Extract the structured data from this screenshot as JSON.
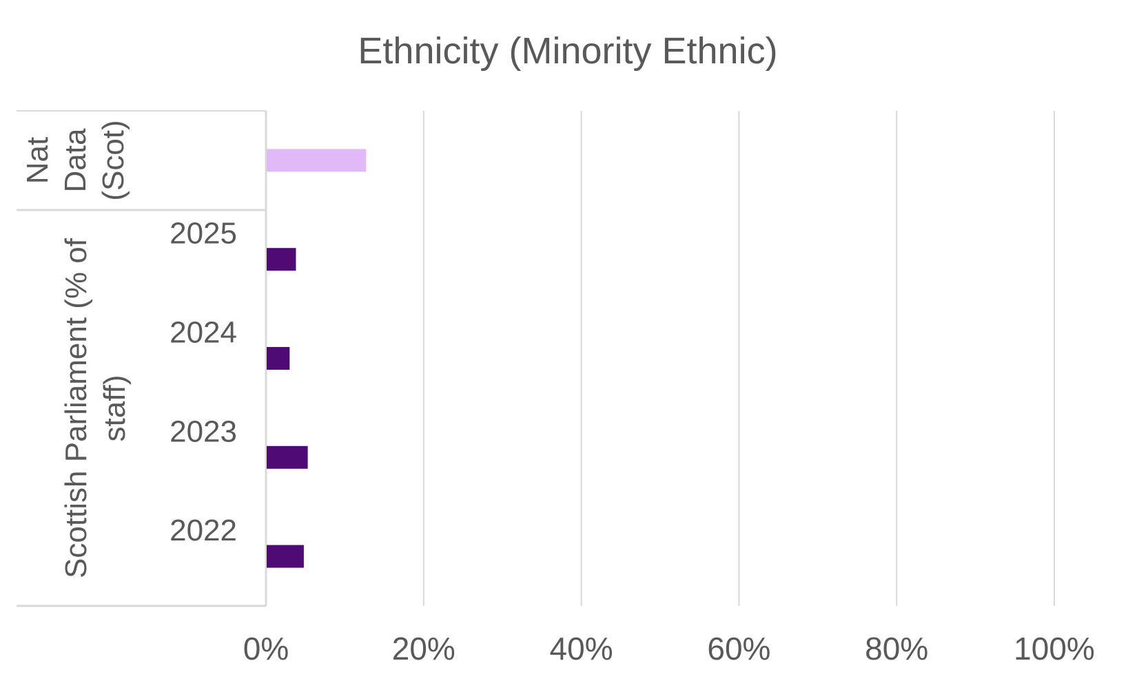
{
  "chart_data": {
    "type": "bar",
    "orientation": "horizontal",
    "title": "Ethnicity (Minority Ethnic)",
    "xlabel": "",
    "ylabel": "",
    "xlim": [
      0,
      100
    ],
    "x_ticks": [
      "0%",
      "20%",
      "40%",
      "60%",
      "80%",
      "100%"
    ],
    "grid": true,
    "legend": "none",
    "groups": [
      {
        "label_lines": [
          "Nat",
          "Data",
          "(Scot)"
        ],
        "categories": [
          ""
        ]
      },
      {
        "label_lines": [
          "Scottish Parliament (% of",
          "staff)"
        ],
        "categories": [
          "2025",
          "2024",
          "2023",
          "2022"
        ]
      }
    ],
    "categories": [
      "Nat Data (Scot)",
      "2025",
      "2024",
      "2023",
      "2022"
    ],
    "values": [
      12.7,
      3.8,
      3.0,
      5.3,
      4.8
    ],
    "colors": [
      "#E1B9F9",
      "#500A73",
      "#500A73",
      "#500A73",
      "#500A73"
    ],
    "units": "%"
  }
}
